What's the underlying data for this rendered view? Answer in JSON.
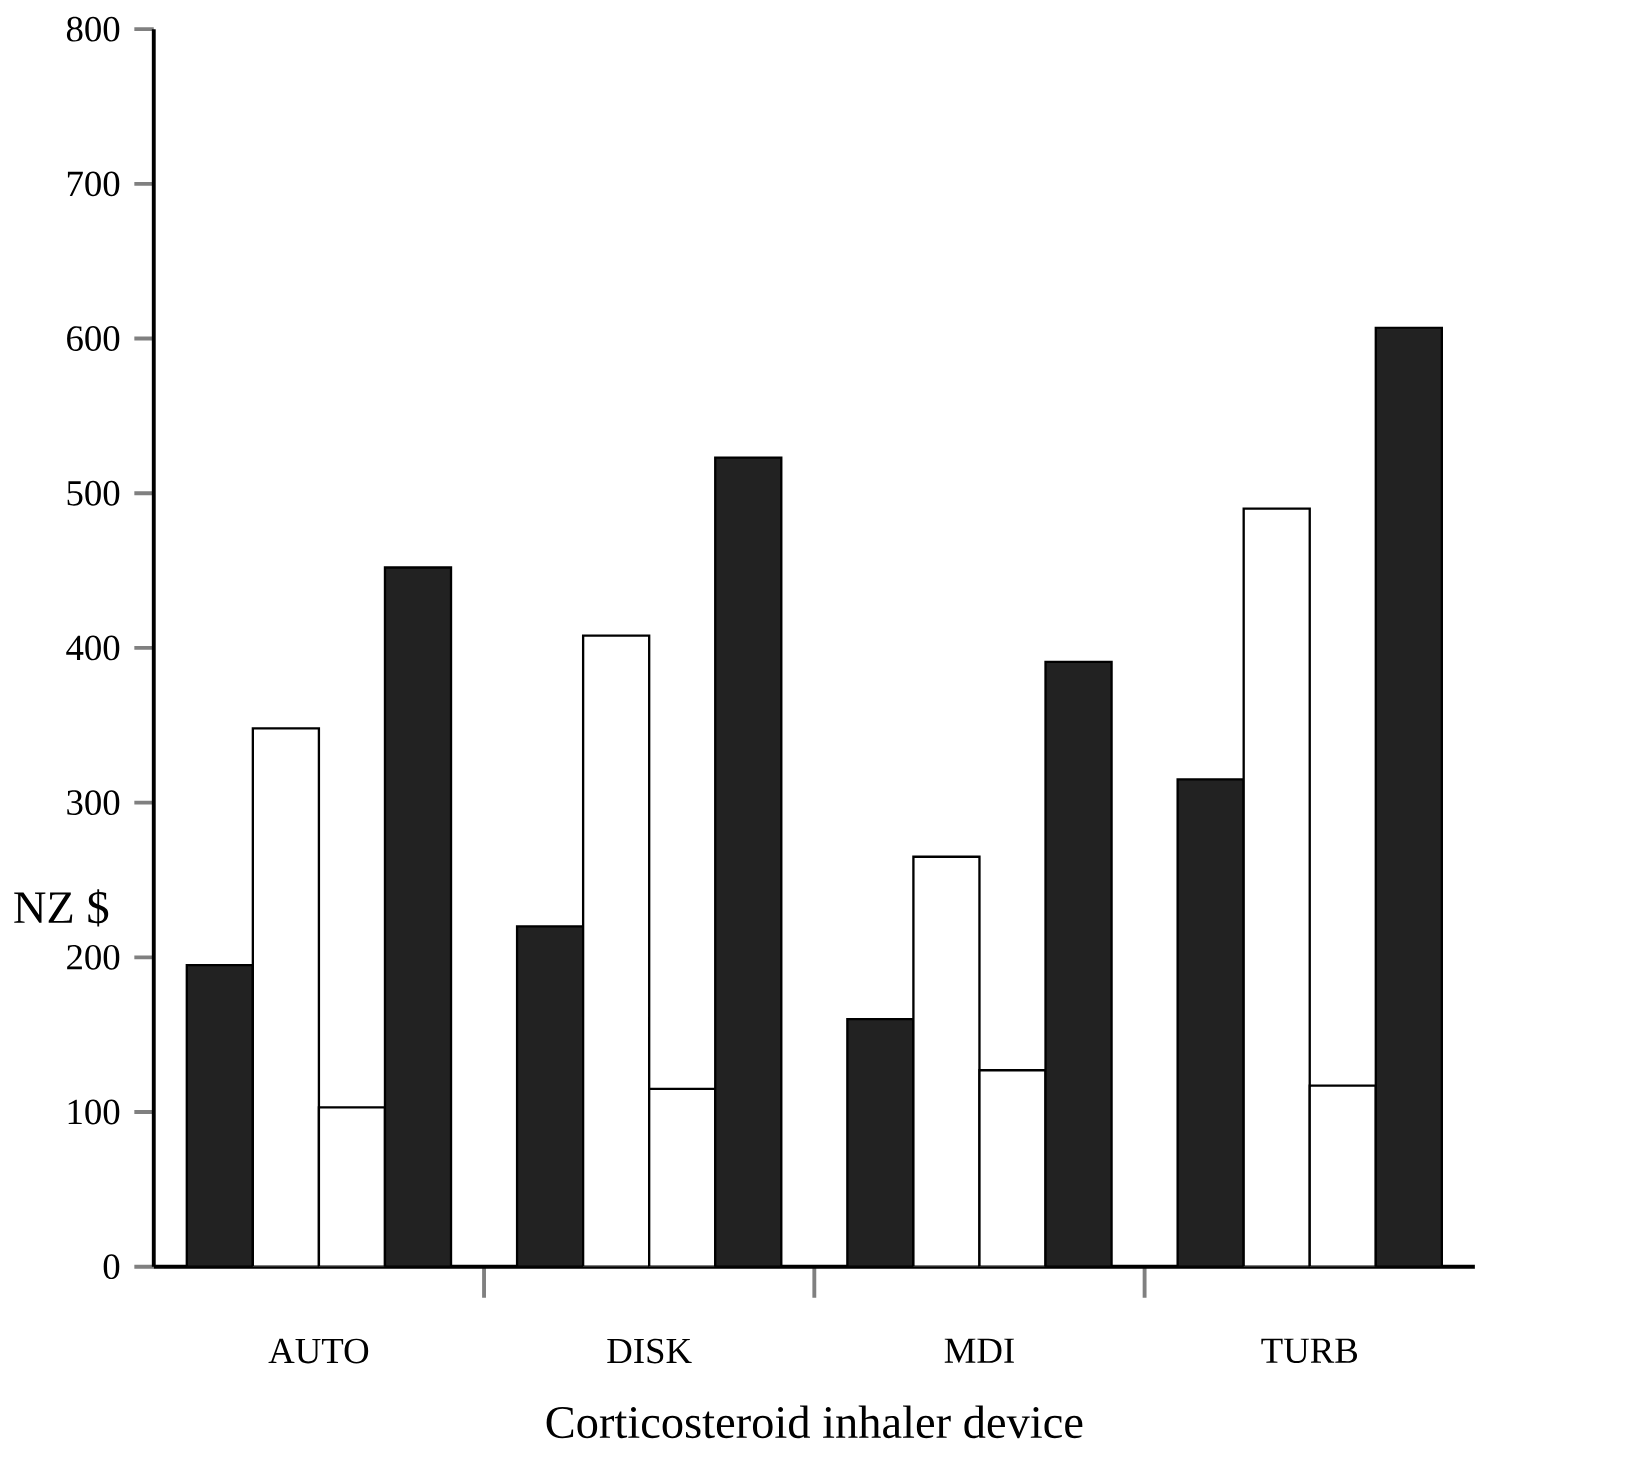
{
  "chart_data": {
    "type": "bar",
    "xlabel": "Corticosteroid inhaler device",
    "ylabel": "NZ $",
    "categories": [
      "AUTO",
      "DISK",
      "MDI",
      "TURB"
    ],
    "series": [
      {
        "color": "#222222",
        "values": [
          195,
          220,
          160,
          315
        ]
      },
      {
        "color": "#ffffff",
        "values": [
          348,
          408,
          265,
          490
        ]
      },
      {
        "color": "#ffffff",
        "values": [
          103,
          115,
          127,
          117
        ]
      },
      {
        "color": "#222222",
        "values": [
          452,
          523,
          391,
          607
        ]
      }
    ],
    "ylim": [
      0,
      800
    ],
    "yticks": [
      0,
      100,
      200,
      300,
      400,
      500,
      600,
      700,
      800
    ]
  }
}
